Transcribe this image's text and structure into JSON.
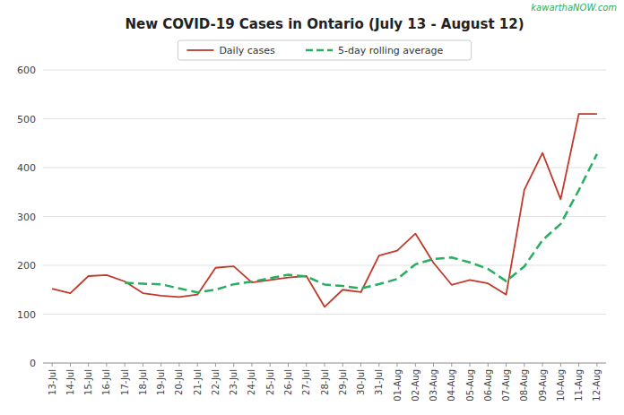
{
  "chart_data": {
    "type": "line",
    "title": "New COVID-19 Cases in Ontario (July 13 - August 12)",
    "annotations": [
      "kawarthaNOW.com"
    ],
    "categories": [
      "13-Jul",
      "14-Jul",
      "15-Jul",
      "16-Jul",
      "17-Jul",
      "18-Jul",
      "19-Jul",
      "20-Jul",
      "21-Jul",
      "22-Jul",
      "23-Jul",
      "24-Jul",
      "25-Jul",
      "26-Jul",
      "27-Jul",
      "28-Jul",
      "29-Jul",
      "30-Jul",
      "31-Jul",
      "01-Aug",
      "02-Aug",
      "03-Aug",
      "04-Aug",
      "05-Aug",
      "06-Aug",
      "07-Aug",
      "08-Aug",
      "09-Aug",
      "10-Aug",
      "11-Aug",
      "12-Aug"
    ],
    "series": [
      {
        "name": "Daily cases",
        "color": "#c0392b",
        "line_style": "solid",
        "values": [
          152,
          143,
          178,
          180,
          167,
          143,
          138,
          135,
          140,
          195,
          198,
          165,
          170,
          175,
          178,
          115,
          150,
          145,
          220,
          230,
          265,
          205,
          160,
          170,
          163,
          140,
          355,
          430,
          335,
          510,
          510
        ]
      },
      {
        "name": "5-day rolling average",
        "color": "#27ae60",
        "line_style": "dashed",
        "values": [
          null,
          null,
          null,
          null,
          164,
          162.2,
          161.2,
          152.6,
          144.6,
          150.2,
          161.2,
          166.6,
          173.6,
          180.6,
          177.2,
          160.6,
          157.6,
          152.6,
          161.6,
          172,
          202,
          213,
          216,
          206,
          192.6,
          167.6,
          197.6,
          251.6,
          284.6,
          354,
          428
        ]
      }
    ],
    "ylim": [
      0,
      600
    ],
    "yticks": [
      0,
      100,
      200,
      300,
      400,
      500,
      600
    ],
    "grid": true,
    "legend": "top"
  }
}
